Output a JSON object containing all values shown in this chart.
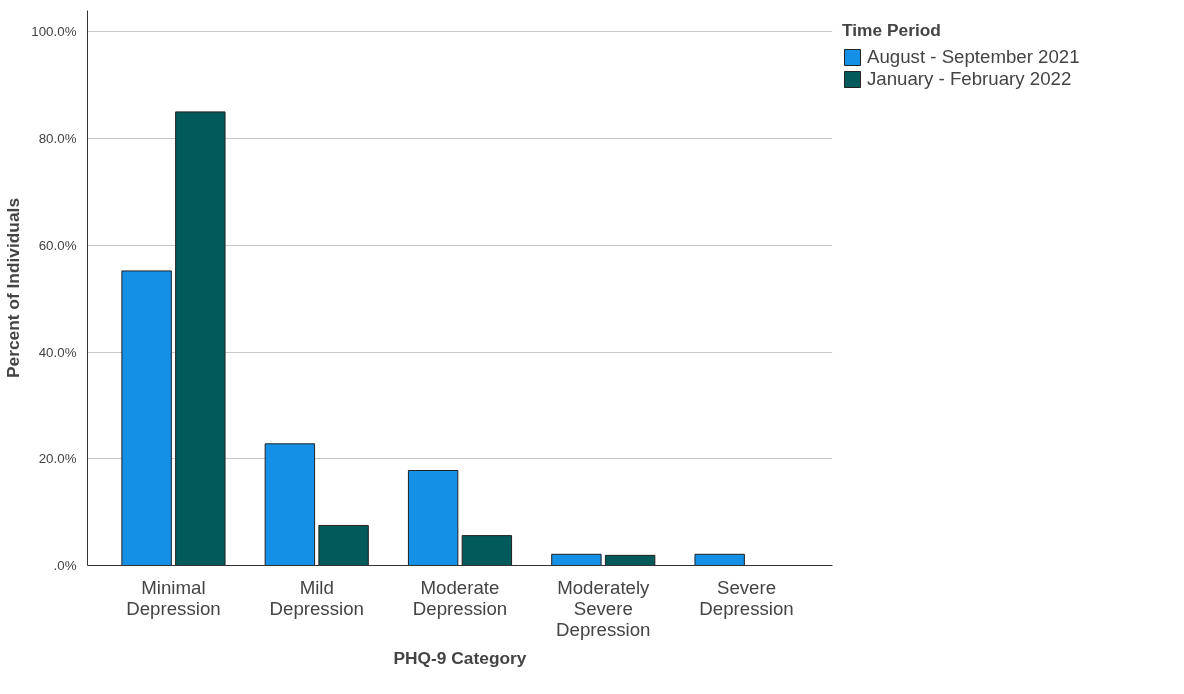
{
  "chart_data": {
    "type": "bar",
    "xlabel": "PHQ-9 Category",
    "ylabel": "Percent of Individuals",
    "legend_title": "Time Period",
    "categories": [
      "Minimal Depression",
      "Mild Depression",
      "Moderate Depression",
      "Moderately Severe Depression",
      "Severe Depression"
    ],
    "series": [
      {
        "name": "August - September 2021",
        "color": "#1490e6",
        "values": [
          55.2,
          22.8,
          17.8,
          2.1,
          2.1
        ]
      },
      {
        "name": "January - February 2022",
        "color": "#025b5a",
        "values": [
          85.0,
          7.5,
          5.6,
          1.9,
          0.0
        ]
      }
    ],
    "ylim": [
      0,
      104
    ],
    "yticks": [
      {
        "value": 0,
        "label": ".0%"
      },
      {
        "value": 20,
        "label": "20.0%"
      },
      {
        "value": 40,
        "label": "40.0%"
      },
      {
        "value": 60,
        "label": "60.0%"
      },
      {
        "value": 80,
        "label": "80.0%"
      },
      {
        "value": 100,
        "label": "100.0%"
      }
    ],
    "grid": "y",
    "legend": "top right"
  }
}
